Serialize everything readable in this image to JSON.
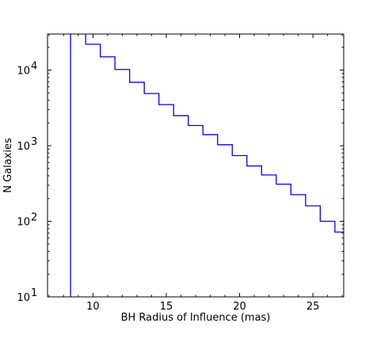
{
  "chart_data": {
    "type": "line",
    "style": "step-histogram",
    "xlabel": "BH Radius of Influence (mas)",
    "ylabel": "N Galaxies",
    "x_ticks": [
      {
        "value": 10,
        "label": "10"
      },
      {
        "value": 15,
        "label": "15"
      },
      {
        "value": 20,
        "label": "20"
      },
      {
        "value": 25,
        "label": "25"
      }
    ],
    "y_ticks": [
      {
        "value": 10,
        "base": "10",
        "exp": "1"
      },
      {
        "value": 100,
        "base": "10",
        "exp": "2"
      },
      {
        "value": 1000,
        "base": "10",
        "exp": "3"
      },
      {
        "value": 10000,
        "base": "10",
        "exp": "4"
      }
    ],
    "xlim": [
      6.9,
      27.1
    ],
    "ylim": [
      10,
      30000
    ],
    "y_scale": "log",
    "grid": false,
    "line_color": "#0000ff",
    "vertical_line_x": 8.47,
    "bins": [
      {
        "x0": 9.5,
        "x1": 10.5,
        "y": 22000
      },
      {
        "x0": 10.5,
        "x1": 11.5,
        "y": 15000
      },
      {
        "x0": 11.5,
        "x1": 12.5,
        "y": 10200
      },
      {
        "x0": 12.5,
        "x1": 13.5,
        "y": 6900
      },
      {
        "x0": 13.5,
        "x1": 14.5,
        "y": 4900
      },
      {
        "x0": 14.5,
        "x1": 15.5,
        "y": 3500
      },
      {
        "x0": 15.5,
        "x1": 16.5,
        "y": 2500
      },
      {
        "x0": 16.5,
        "x1": 17.5,
        "y": 1850
      },
      {
        "x0": 17.5,
        "x1": 18.5,
        "y": 1400
      },
      {
        "x0": 18.5,
        "x1": 19.5,
        "y": 1030
      },
      {
        "x0": 19.5,
        "x1": 20.5,
        "y": 740
      },
      {
        "x0": 20.5,
        "x1": 21.5,
        "y": 540
      },
      {
        "x0": 21.5,
        "x1": 22.5,
        "y": 410
      },
      {
        "x0": 22.5,
        "x1": 23.5,
        "y": 310
      },
      {
        "x0": 23.5,
        "x1": 24.5,
        "y": 225
      },
      {
        "x0": 24.5,
        "x1": 25.5,
        "y": 160
      },
      {
        "x0": 25.5,
        "x1": 26.5,
        "y": 100
      },
      {
        "x0": 26.5,
        "x1": 27.1,
        "y": 72
      }
    ]
  }
}
